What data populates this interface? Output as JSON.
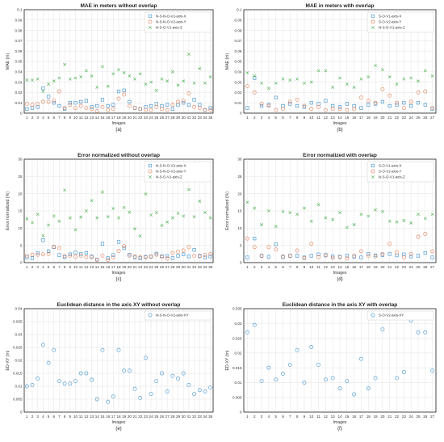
{
  "chart_data": [
    {
      "type": "scatter",
      "title": "MAE in meters without overlap",
      "xlabel": "Images",
      "ylabel": "MAE (m)",
      "panel_label": "(a)",
      "x": [
        1,
        2,
        3,
        4,
        5,
        6,
        7,
        8,
        9,
        10,
        11,
        12,
        13,
        14,
        15,
        16,
        17,
        18,
        19,
        20,
        21,
        22,
        23,
        24,
        25,
        26,
        27,
        28,
        29,
        30,
        31,
        32,
        33,
        34,
        35
      ],
      "xticks": [
        "1",
        "2",
        "3",
        "4",
        "5",
        "6",
        "7",
        "8",
        "9",
        "10",
        "11",
        "12",
        "13",
        "14",
        "15",
        "16",
        "17",
        "18",
        "19",
        "20",
        "21",
        "22",
        "23",
        "24",
        "25",
        "26",
        "27",
        "28",
        "29",
        "30",
        "31",
        "32",
        "33",
        "34",
        "35"
      ],
      "ylim": [
        0,
        0.1
      ],
      "yticks": [
        "0",
        "0.01",
        "0.02",
        "0.03",
        "0.04",
        "0.05",
        "0.06",
        "0.07",
        "0.08",
        "0.09",
        "0.1"
      ],
      "grid": true,
      "legend_position": "top-right",
      "series": [
        {
          "name": "N-S-N-O-V2-axis-X",
          "marker": "square",
          "color": "#3a8fd0",
          "values": [
            0.004,
            0.005,
            0.006,
            0.024,
            0.016,
            0.01,
            0.007,
            0.004,
            0.01,
            0.01,
            0.011,
            0.012,
            0.006,
            0.007,
            0.013,
            0.007,
            0.008,
            0.021,
            0.022,
            0.011,
            0.005,
            0.004,
            0.006,
            0.007,
            0.009,
            0.007,
            0.008,
            0.004,
            0.008,
            0.01,
            0.008,
            0.013,
            0.008,
            0.003,
            0.005
          ]
        },
        {
          "name": "N-S-N-O-V2-axis-Y",
          "marker": "circle",
          "color": "#e07850",
          "values": [
            0.009,
            0.008,
            0.009,
            0.011,
            0.011,
            0.012,
            0.021,
            0.005,
            0.008,
            0.005,
            0.007,
            0.005,
            0.004,
            0.002,
            0.006,
            0.003,
            0.004,
            0.014,
            0.018,
            0.007,
            0.005,
            0.004,
            0.003,
            0.003,
            0.006,
            0.004,
            0.003,
            0.008,
            0.011,
            0.012,
            0.019,
            0.006,
            0.005,
            0.003,
            0.003
          ]
        },
        {
          "name": "N-S-O-V1-axis-Z",
          "marker": "x",
          "color": "#4caf50",
          "values": [
            0.032,
            0.032,
            0.033,
            0.021,
            0.028,
            0.031,
            0.034,
            0.047,
            0.033,
            0.034,
            0.035,
            0.041,
            0.036,
            0.025,
            0.045,
            0.026,
            0.038,
            0.042,
            0.039,
            0.036,
            0.033,
            0.038,
            0.028,
            0.03,
            0.022,
            0.033,
            0.031,
            0.04,
            0.027,
            0.031,
            0.057,
            0.029,
            0.043,
            0.029,
            0.035
          ]
        }
      ]
    },
    {
      "type": "scatter",
      "title": "MAE in meters with overlap",
      "xlabel": "Images",
      "ylabel": "MAE (m)",
      "panel_label": "(b)",
      "x": [
        1,
        2,
        3,
        4,
        5,
        6,
        7,
        8,
        9,
        10,
        11,
        12,
        13,
        14,
        15,
        16,
        17,
        18,
        19,
        20,
        21,
        22,
        23,
        24,
        25,
        26,
        27
      ],
      "xticks": [
        "1",
        "2",
        "3",
        "4",
        "5",
        "6",
        "7",
        "8",
        "9",
        "10",
        "11",
        "12",
        "13",
        "14",
        "15",
        "16",
        "17",
        "18",
        "19",
        "20",
        "21",
        "22",
        "23",
        "24",
        "25",
        "26",
        "27"
      ],
      "ylim": [
        0,
        0.1
      ],
      "yticks": [
        "0",
        "0.01",
        "0.02",
        "0.03",
        "0.04",
        "0.05",
        "0.06",
        "0.07",
        "0.08",
        "0.09",
        "0.1"
      ],
      "grid": true,
      "legend_position": "top-right",
      "series": [
        {
          "name": "S-O-V1-axis-X",
          "marker": "square",
          "color": "#3a8fd0",
          "values": [
            0.005,
            0.034,
            0.007,
            0.008,
            0.015,
            0.007,
            0.009,
            0.007,
            0.006,
            0.01,
            0.009,
            0.012,
            0.007,
            0.006,
            0.009,
            0.007,
            0.005,
            0.008,
            0.009,
            0.011,
            0.007,
            0.008,
            0.01,
            0.007,
            0.01,
            0.008,
            0.004
          ]
        },
        {
          "name": "S-O-V2-axis-Y",
          "marker": "circle",
          "color": "#e07850",
          "values": [
            0.026,
            0.02,
            0.009,
            0.007,
            0.003,
            0.004,
            0.011,
            0.013,
            0.007,
            0.004,
            0.006,
            0.003,
            0.004,
            0.004,
            0.003,
            0.004,
            0.015,
            0.012,
            0.01,
            0.023,
            0.017,
            0.01,
            0.005,
            0.011,
            0.02,
            0.021,
            0.005
          ]
        },
        {
          "name": "N-S-O-V1-axis-Z",
          "marker": "x",
          "color": "#4caf50",
          "values": [
            0.039,
            0.036,
            0.029,
            0.024,
            0.029,
            0.033,
            0.032,
            0.033,
            0.029,
            0.03,
            0.041,
            0.041,
            0.025,
            0.034,
            0.028,
            0.025,
            0.033,
            0.035,
            0.046,
            0.042,
            0.035,
            0.028,
            0.033,
            0.034,
            0.031,
            0.041,
            0.036
          ]
        }
      ]
    },
    {
      "type": "scatter",
      "title": "Error normalized without overlap",
      "xlabel": "Images",
      "ylabel": "Error normalized (%)",
      "panel_label": "(c)",
      "x": [
        1,
        2,
        3,
        4,
        5,
        6,
        7,
        8,
        9,
        10,
        11,
        12,
        13,
        14,
        15,
        16,
        17,
        18,
        19,
        20,
        21,
        22,
        23,
        24,
        25,
        26,
        27,
        28,
        29,
        30,
        31,
        32,
        33,
        34,
        35
      ],
      "xticks": [
        "1",
        "2",
        "3",
        "4",
        "5",
        "6",
        "7",
        "8",
        "9",
        "10",
        "11",
        "12",
        "13",
        "14",
        "15",
        "16",
        "17",
        "18",
        "19",
        "20",
        "21",
        "22",
        "23",
        "24",
        "25",
        "26",
        "27",
        "28",
        "29",
        "30",
        "31",
        "32",
        "33",
        "34",
        "35"
      ],
      "ylim": [
        0,
        30
      ],
      "yticks": [
        "0",
        "5",
        "10",
        "15",
        "20",
        "25",
        "30"
      ],
      "grid": true,
      "legend_position": "top-right",
      "series": [
        {
          "name": "N-S-N-O-V2-axis-X",
          "marker": "square",
          "color": "#3a8fd0",
          "values": [
            1.5,
            1.3,
            2.8,
            6.5,
            3.3,
            4.5,
            2.2,
            1.6,
            2.4,
            2.9,
            2.5,
            2.8,
            1.8,
            0.9,
            5.5,
            1.3,
            2.2,
            6.0,
            4.2,
            2.3,
            1.5,
            1.3,
            1.7,
            1.8,
            2.6,
            1.9,
            1.9,
            1.3,
            2.0,
            2.4,
            1.8,
            3.7,
            2.0,
            1.5,
            1.8
          ]
        },
        {
          "name": "N-S-N-O-V2-axis-Y",
          "marker": "circle",
          "color": "#e07850",
          "values": [
            2.0,
            2.3,
            2.3,
            2.4,
            2.5,
            4.6,
            4.2,
            1.9,
            2.0,
            1.7,
            2.0,
            1.6,
            1.5,
            0.8,
            2.0,
            0.8,
            1.5,
            3.4,
            4.8,
            2.0,
            1.8,
            1.6,
            1.5,
            1.7,
            2.3,
            1.6,
            1.2,
            2.8,
            3.2,
            3.5,
            4.5,
            2.0,
            1.8,
            2.2,
            2.5
          ]
        },
        {
          "name": "N-S-O-V1-axis-Z",
          "marker": "x",
          "color": "#4caf50",
          "values": [
            12.7,
            11.6,
            14.0,
            7.8,
            10.9,
            13.5,
            12.0,
            21.0,
            13.0,
            9.5,
            13.2,
            15.0,
            18.0,
            13.0,
            20.5,
            13.3,
            15.7,
            13.0,
            16.0,
            14.6,
            9.8,
            7.7,
            19.9,
            13.8,
            14.5,
            10.8,
            11.8,
            13.0,
            14.3,
            13.5,
            21.2,
            13.3,
            17.8,
            14.5,
            13.0
          ]
        }
      ]
    },
    {
      "type": "scatter",
      "title": "Error normalized with overlap",
      "xlabel": "Images",
      "ylabel": "Error normalized (%)",
      "panel_label": "(d)",
      "x": [
        1,
        2,
        3,
        4,
        5,
        6,
        7,
        8,
        9,
        10,
        11,
        12,
        13,
        14,
        15,
        16,
        17,
        18,
        19,
        20,
        21,
        22,
        23,
        24,
        25,
        26,
        27
      ],
      "xticks": [
        "1",
        "2",
        "3",
        "4",
        "5",
        "6",
        "7",
        "8",
        "9",
        "10",
        "11",
        "12",
        "13",
        "14",
        "15",
        "16",
        "17",
        "18",
        "19",
        "20",
        "21",
        "22",
        "23",
        "24",
        "25",
        "26",
        "27"
      ],
      "ylim": [
        0,
        30
      ],
      "yticks": [
        "0",
        "5",
        "10",
        "15",
        "20",
        "25",
        "30"
      ],
      "grid": true,
      "legend_position": "top-right",
      "series": [
        {
          "name": "S-O-V1-axis-X",
          "marker": "square",
          "color": "#3a8fd0",
          "values": [
            1.5,
            7.0,
            2.0,
            1.7,
            5.3,
            1.6,
            2.0,
            2.0,
            1.5,
            2.0,
            2.4,
            2.2,
            1.8,
            1.7,
            2.0,
            1.7,
            1.5,
            2.5,
            2.1,
            2.2,
            2.5,
            2.1,
            2.4,
            1.8,
            2.0,
            2.8,
            1.5
          ]
        },
        {
          "name": "S-O-V2-axis-Y",
          "marker": "circle",
          "color": "#e07850",
          "values": [
            7.0,
            4.5,
            1.9,
            4.5,
            3.8,
            1.8,
            1.9,
            3.5,
            1.3,
            5.5,
            1.6,
            2.0,
            1.4,
            1.5,
            1.2,
            2.0,
            3.3,
            2.0,
            1.8,
            2.5,
            5.5,
            3.0,
            1.5,
            2.5,
            7.5,
            8.3,
            3.3
          ]
        },
        {
          "name": "N-S-O-V1-axis-Z",
          "marker": "x",
          "color": "#4caf50",
          "values": [
            17.5,
            15.8,
            11.0,
            15.0,
            10.5,
            14.8,
            14.5,
            14.0,
            15.8,
            12.0,
            16.8,
            13.0,
            12.5,
            14.5,
            10.2,
            11.0,
            14.0,
            13.5,
            15.3,
            14.8,
            12.0,
            11.8,
            12.2,
            11.5,
            14.0,
            12.8,
            14.0
          ]
        }
      ]
    },
    {
      "type": "scatter",
      "title": "Euclidean distance in the axis XY without overlap",
      "xlabel": "Images",
      "ylabel": "ED-XY (m)",
      "panel_label": "(e)",
      "x": [
        1,
        2,
        3,
        4,
        5,
        6,
        7,
        8,
        9,
        10,
        11,
        12,
        13,
        14,
        15,
        16,
        17,
        18,
        19,
        20,
        21,
        22,
        23,
        24,
        25,
        26,
        27,
        28,
        29,
        30,
        31,
        32,
        33,
        34,
        35
      ],
      "xticks": [
        "1",
        "2",
        "3",
        "4",
        "5",
        "6",
        "7",
        "8",
        "9",
        "10",
        "11",
        "12",
        "13",
        "14",
        "15",
        "16",
        "17",
        "18",
        "19",
        "20",
        "21",
        "22",
        "23",
        "24",
        "25",
        "26",
        "27",
        "28",
        "29",
        "30",
        "31",
        "32",
        "33",
        "34",
        "35"
      ],
      "ylim": [
        0,
        0.04
      ],
      "yticks": [
        "0",
        "0.005",
        "0.01",
        "0.015",
        "0.02",
        "0.025",
        "0.03",
        "0.035",
        "0.04"
      ],
      "grid": true,
      "legend_position": "top-right",
      "series": [
        {
          "name": "N-S-N-O-V2-axis-XY",
          "marker": "circle",
          "color": "#3a8fd0",
          "values": [
            0.01,
            0.0105,
            0.013,
            0.026,
            0.019,
            0.024,
            0.012,
            0.011,
            0.011,
            0.012,
            0.015,
            0.015,
            0.0125,
            0.005,
            0.024,
            0.004,
            0.006,
            0.024,
            0.016,
            0.016,
            0.009,
            0.0055,
            0.021,
            0.007,
            0.012,
            0.015,
            0.008,
            0.014,
            0.013,
            0.015,
            0.0105,
            0.007,
            0.0085,
            0.008,
            0.0095
          ]
        }
      ]
    },
    {
      "type": "scatter",
      "title": "Euclidean distance in the axis XY with overlap",
      "xlabel": "Images",
      "ylabel": "ED-XY (m)",
      "panel_label": "(f)",
      "x": [
        1,
        2,
        3,
        4,
        5,
        6,
        7,
        8,
        9,
        10,
        11,
        12,
        13,
        14,
        15,
        16,
        17,
        18,
        19,
        20,
        21,
        22,
        23,
        24,
        25,
        26,
        27
      ],
      "xticks": [
        "1",
        "2",
        "3",
        "4",
        "5",
        "6",
        "7",
        "8",
        "9",
        "10",
        "11",
        "12",
        "13",
        "14",
        "15",
        "16",
        "17",
        "18",
        "19",
        "20",
        "21",
        "22",
        "23",
        "24",
        "25",
        "26",
        "27"
      ],
      "ylim": [
        0,
        0.035
      ],
      "yticks": [
        "0",
        "0.005",
        "0.01",
        "0.015",
        "0.02",
        "0.025",
        "0.03",
        "0.035"
      ],
      "grid": true,
      "legend_position": "top-right",
      "series": [
        {
          "name": "S-O-V2-axis-XY",
          "marker": "circle",
          "color": "#3a8fd0",
          "values": [
            0.027,
            0.0295,
            0.0105,
            0.015,
            0.011,
            0.013,
            0.016,
            0.021,
            0.01,
            0.022,
            0.016,
            0.011,
            0.0115,
            0.008,
            0.0105,
            0.006,
            0.018,
            0.008,
            0.0115,
            0.028,
            0.033,
            0.0115,
            0.0135,
            0.031,
            0.027,
            0.027,
            0.014
          ]
        }
      ]
    }
  ]
}
